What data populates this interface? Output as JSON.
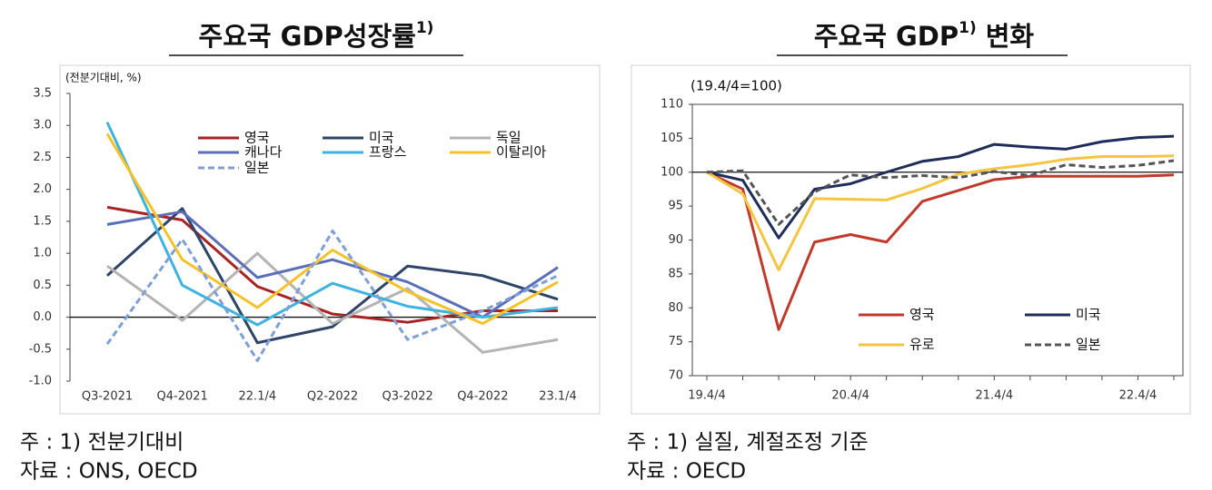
{
  "chart_data": [
    {
      "type": "line",
      "title": "주요국 GDP성장률",
      "title_note": "1)",
      "unit_label": "(전분기대비, %)",
      "categories": [
        "Q3-2021",
        "Q4-2021",
        "22.1/4",
        "Q2-2022",
        "Q3-2022",
        "Q4-2022",
        "23.1/4"
      ],
      "series": [
        {
          "name": "영국",
          "color": "#a82424",
          "values": [
            1.72,
            1.52,
            0.48,
            0.05,
            -0.08,
            0.1,
            0.1
          ]
        },
        {
          "name": "미국",
          "color": "#2e4468",
          "values": [
            0.65,
            1.7,
            -0.4,
            -0.15,
            0.8,
            0.65,
            0.28
          ]
        },
        {
          "name": "독일",
          "color": "#b4b4b4",
          "values": [
            0.8,
            -0.05,
            1.0,
            -0.1,
            0.45,
            -0.55,
            -0.35
          ]
        },
        {
          "name": "캐나다",
          "color": "#5a6fb8",
          "values": [
            1.45,
            1.65,
            0.62,
            0.9,
            0.55,
            0.0,
            0.78
          ]
        },
        {
          "name": "프랑스",
          "color": "#3fb3df",
          "values": [
            3.05,
            0.5,
            -0.12,
            0.53,
            0.17,
            0.0,
            0.15
          ]
        },
        {
          "name": "이탈리아",
          "color": "#f6c22a",
          "values": [
            2.87,
            0.9,
            0.15,
            1.05,
            0.4,
            -0.1,
            0.55
          ]
        },
        {
          "name": "일본",
          "color": "#7f9fd8",
          "dash": true,
          "values": [
            -0.42,
            1.22,
            -0.68,
            1.35,
            -0.35,
            0.1,
            0.65
          ]
        }
      ],
      "ylim": [
        -1,
        3.5
      ],
      "yticks": [
        {
          "value": -1,
          "label": "-1.0"
        },
        -0.5,
        {
          "value": 0,
          "label": "0.0"
        },
        0.5,
        {
          "value": 1,
          "label": "1.0"
        },
        1.5,
        {
          "value": 2,
          "label": "2.0"
        },
        2.5,
        {
          "value": 3,
          "label": "3.0"
        },
        3.5
      ],
      "hline": 0,
      "legend": "top",
      "notes": [
        "주 : 1) 전분기대비",
        "자료 : ONS, OECD"
      ]
    },
    {
      "type": "line",
      "title": "주요국 GDP",
      "title_note": "1)",
      "title_suffix": "변화",
      "unit_label": "(19.4/4=100)",
      "categories": [
        "19.4/4",
        null,
        null,
        null,
        "20.4/4",
        null,
        null,
        null,
        "21.4/4",
        null,
        null,
        null,
        "22.4/4",
        null
      ],
      "series": [
        {
          "name": "영국",
          "color": "#c0392b",
          "values": [
            100,
            97.5,
            76.8,
            89.7,
            90.8,
            89.7,
            95.7,
            97.3,
            98.9,
            99.4,
            99.4,
            99.4,
            99.4,
            99.6
          ]
        },
        {
          "name": "미국",
          "color": "#1f2d5a",
          "values": [
            100,
            98.8,
            90.3,
            97.5,
            98.3,
            100,
            101.6,
            102.3,
            104.1,
            103.7,
            103.4,
            104.5,
            105.1,
            105.3
          ]
        },
        {
          "name": "유로",
          "color": "#f5c542",
          "values": [
            100,
            96.8,
            85.6,
            96.1,
            96.0,
            95.9,
            97.6,
            99.7,
            100.5,
            101.1,
            101.9,
            102.3,
            102.3,
            102.4
          ]
        },
        {
          "name": "일본",
          "color": "#555555",
          "dash": true,
          "values": [
            100,
            100.2,
            92.3,
            97.1,
            99.6,
            99.2,
            99.5,
            99.2,
            100.1,
            99.5,
            101.1,
            100.7,
            101.0,
            101.7
          ]
        }
      ],
      "ylim": [
        70,
        110
      ],
      "yticks": [
        70,
        75,
        80,
        85,
        90,
        95,
        100,
        105,
        110
      ],
      "hline": 100,
      "legend": "bottom-right",
      "notes": [
        "주 : 1) 실질, 계절조정 기준",
        "자료 : OECD"
      ]
    }
  ]
}
